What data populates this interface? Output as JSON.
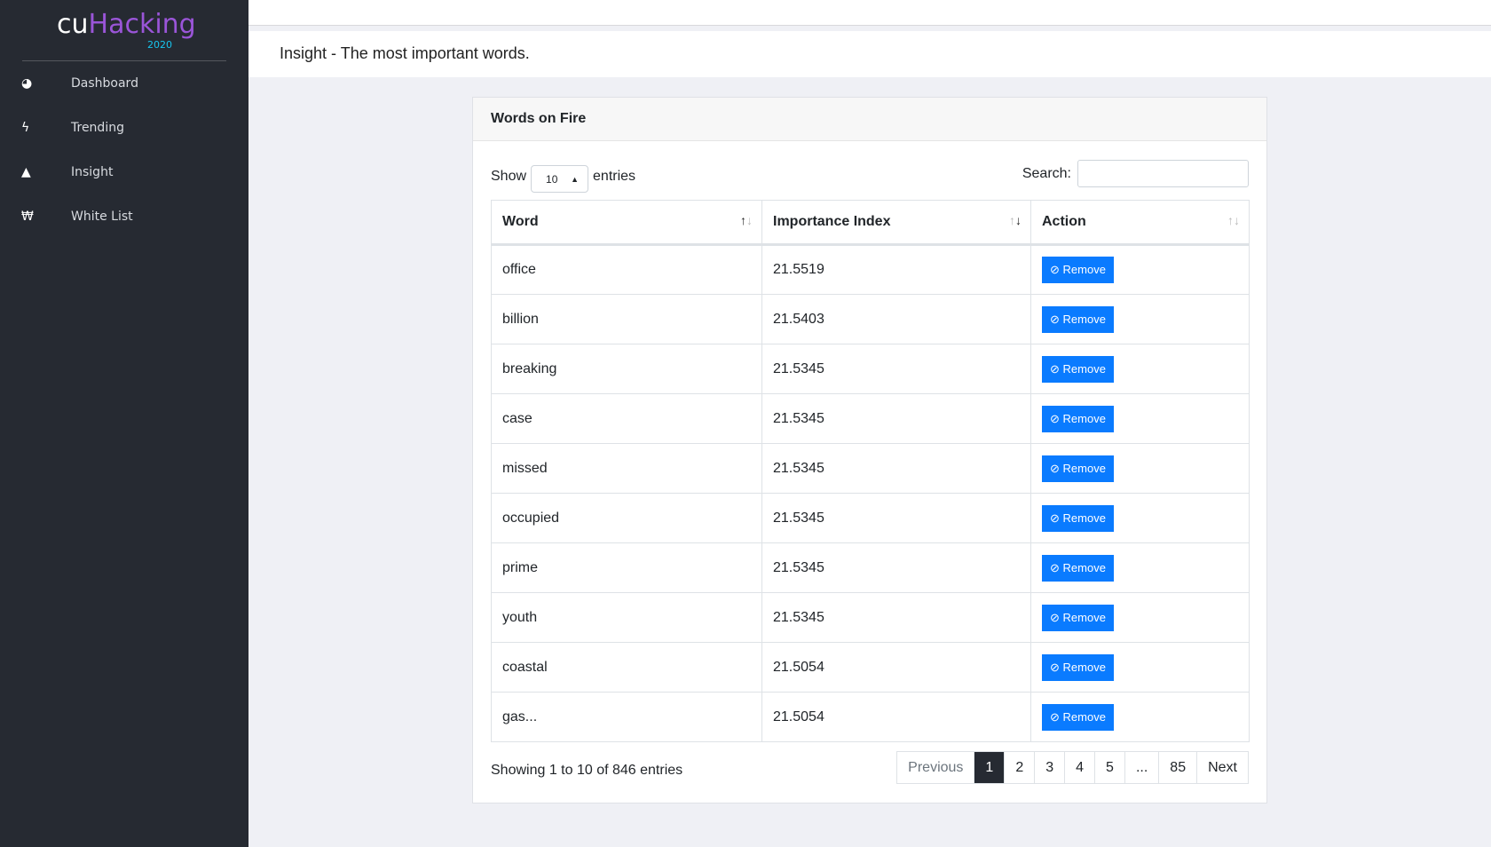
{
  "sidebar": {
    "logo": {
      "cu": "cu",
      "hacking": "Hacking",
      "year": "2020"
    },
    "items": [
      {
        "label": "Dashboard",
        "icon": "tachometer-icon",
        "glyph": "◕"
      },
      {
        "label": "Trending",
        "icon": "bolt-icon",
        "glyph": "ϟ"
      },
      {
        "label": "Insight",
        "icon": "warning-icon",
        "glyph": "▲"
      },
      {
        "label": "White List",
        "icon": "won-icon",
        "glyph": "₩"
      }
    ]
  },
  "header": {
    "title": "Insight - The most important words."
  },
  "card": {
    "title": "Words on Fire",
    "show": "Show",
    "entries": "entries",
    "page_size": "10",
    "search_label": "Search:",
    "search_value": "",
    "columns": [
      "Word",
      "Importance Index",
      "Action"
    ],
    "rows": [
      {
        "word": "office",
        "index": "21.5519"
      },
      {
        "word": "billion",
        "index": "21.5403"
      },
      {
        "word": "breaking",
        "index": "21.5345"
      },
      {
        "word": "case",
        "index": "21.5345"
      },
      {
        "word": "missed",
        "index": "21.5345"
      },
      {
        "word": "occupied",
        "index": "21.5345"
      },
      {
        "word": "prime",
        "index": "21.5345"
      },
      {
        "word": "youth",
        "index": "21.5345"
      },
      {
        "word": "coastal",
        "index": "21.5054"
      },
      {
        "word": "gas...",
        "index": "21.5054"
      }
    ],
    "remove_label": "Remove",
    "info": "Showing 1 to 10 of 846 entries",
    "pagination": [
      "Previous",
      "1",
      "2",
      "3",
      "4",
      "5",
      "...",
      "85",
      "Next"
    ],
    "current_page": "1"
  },
  "colors": {
    "sidebar": "#262a32",
    "accent": "#0a7bff",
    "brand": "#9a55d8"
  }
}
